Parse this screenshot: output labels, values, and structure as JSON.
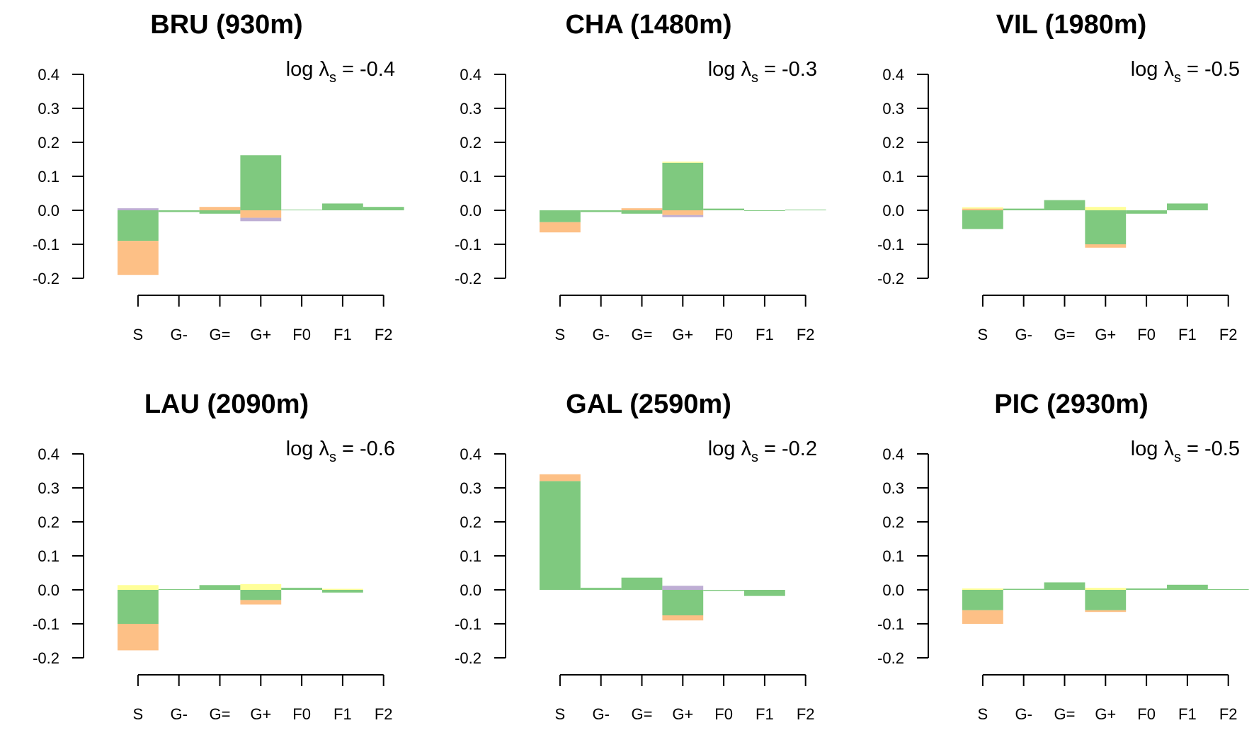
{
  "colors": {
    "green": "#7fc97f",
    "orange": "#fdc086",
    "purple": "#beaed4",
    "yellow": "#ffff99"
  },
  "chart_data": [
    {
      "type": "bar",
      "title": "BRU (930m)",
      "annotation": {
        "prefix": "log ",
        "symbol": "λ",
        "subscript": "s",
        "equals": " = ",
        "value": "-0.4"
      },
      "categories": [
        "S",
        "G-",
        "G=",
        "G+",
        "F0",
        "F1",
        "F2"
      ],
      "ylim": [
        -0.2,
        0.4
      ],
      "yticks": [
        "0.4",
        "0.3",
        "0.2",
        "0.1",
        "0.0",
        "-0.1",
        "-0.2"
      ],
      "grid": false,
      "series": [
        {
          "color": "green",
          "values": [
            -0.09,
            -0.005,
            -0.01,
            0.162,
            0.002,
            0.02,
            0.01
          ]
        },
        {
          "color": "orange",
          "values": [
            -0.1,
            0,
            0.01,
            -0.022,
            0,
            0,
            0
          ]
        },
        {
          "color": "purple",
          "values": [
            0.006,
            0,
            0,
            -0.01,
            0,
            0,
            0
          ]
        }
      ]
    },
    {
      "type": "bar",
      "title": "CHA (1480m)",
      "annotation": {
        "prefix": "log ",
        "symbol": "λ",
        "subscript": "s",
        "equals": " = ",
        "value": "-0.3"
      },
      "categories": [
        "S",
        "G-",
        "G=",
        "G+",
        "F0",
        "F1",
        "F2"
      ],
      "ylim": [
        -0.2,
        0.4
      ],
      "yticks": [
        "0.4",
        "0.3",
        "0.2",
        "0.1",
        "0.0",
        "-0.1",
        "-0.2"
      ],
      "grid": false,
      "series": [
        {
          "color": "green",
          "values": [
            -0.035,
            -0.005,
            -0.01,
            0.14,
            0.005,
            -0.002,
            0.002
          ]
        },
        {
          "color": "orange",
          "values": [
            -0.03,
            0,
            0.006,
            -0.014,
            0,
            0,
            0
          ]
        },
        {
          "color": "purple",
          "values": [
            0,
            0,
            0,
            -0.006,
            0,
            0,
            0
          ]
        },
        {
          "color": "yellow",
          "values": [
            0,
            0,
            0,
            0.003,
            0,
            0,
            0
          ]
        }
      ]
    },
    {
      "type": "bar",
      "title": "VIL (1980m)",
      "annotation": {
        "prefix": "log ",
        "symbol": "λ",
        "subscript": "s",
        "equals": " = ",
        "value": "-0.5"
      },
      "categories": [
        "S",
        "G-",
        "G=",
        "G+",
        "F0",
        "F1",
        "F2"
      ],
      "ylim": [
        -0.2,
        0.4
      ],
      "yticks": [
        "0.4",
        "0.3",
        "0.2",
        "0.1",
        "0.0",
        "-0.1",
        "-0.2"
      ],
      "grid": false,
      "series": [
        {
          "color": "green",
          "values": [
            -0.055,
            0.005,
            0.03,
            -0.1,
            -0.01,
            0.02,
            0
          ]
        },
        {
          "color": "orange",
          "values": [
            0.005,
            0,
            0,
            -0.01,
            0,
            0,
            0
          ]
        },
        {
          "color": "yellow",
          "values": [
            0.004,
            0,
            0,
            0.01,
            0,
            0,
            0
          ]
        }
      ]
    },
    {
      "type": "bar",
      "title": "LAU (2090m)",
      "annotation": {
        "prefix": "log ",
        "symbol": "λ",
        "subscript": "s",
        "equals": " = ",
        "value": "-0.6"
      },
      "categories": [
        "S",
        "G-",
        "G=",
        "G+",
        "F0",
        "F1",
        "F2"
      ],
      "ylim": [
        -0.2,
        0.4
      ],
      "yticks": [
        "0.4",
        "0.3",
        "0.2",
        "0.1",
        "0.0",
        "-0.1",
        "-0.2"
      ],
      "grid": false,
      "series": [
        {
          "color": "green",
          "values": [
            -0.1,
            0.002,
            0.014,
            -0.03,
            0.006,
            -0.008,
            0
          ]
        },
        {
          "color": "orange",
          "values": [
            -0.078,
            0,
            0,
            -0.013,
            0,
            0,
            0
          ]
        },
        {
          "color": "yellow",
          "values": [
            0.014,
            0,
            0,
            0.017,
            0,
            0.003,
            0
          ]
        }
      ]
    },
    {
      "type": "bar",
      "title": "GAL (2590m)",
      "annotation": {
        "prefix": "log ",
        "symbol": "λ",
        "subscript": "s",
        "equals": " = ",
        "value": "-0.2"
      },
      "categories": [
        "S",
        "G-",
        "G=",
        "G+",
        "F0",
        "F1",
        "F2"
      ],
      "ylim": [
        -0.2,
        0.4
      ],
      "yticks": [
        "0.4",
        "0.3",
        "0.2",
        "0.1",
        "0.0",
        "-0.1",
        "-0.2"
      ],
      "grid": false,
      "series": [
        {
          "color": "green",
          "values": [
            0.32,
            0.006,
            0.036,
            -0.075,
            -0.003,
            -0.018,
            0
          ]
        },
        {
          "color": "orange",
          "values": [
            0.02,
            0,
            0,
            -0.015,
            0,
            0,
            0
          ]
        },
        {
          "color": "purple",
          "values": [
            0,
            0,
            0,
            0.012,
            0,
            0,
            0
          ]
        }
      ]
    },
    {
      "type": "bar",
      "title": "PIC (2930m)",
      "annotation": {
        "prefix": "log ",
        "symbol": "λ",
        "subscript": "s",
        "equals": " = ",
        "value": "-0.5"
      },
      "categories": [
        "S",
        "G-",
        "G=",
        "G+",
        "F0",
        "F1",
        "F2"
      ],
      "ylim": [
        -0.2,
        0.4
      ],
      "yticks": [
        "0.4",
        "0.3",
        "0.2",
        "0.1",
        "0.0",
        "-0.1",
        "-0.2"
      ],
      "grid": false,
      "series": [
        {
          "color": "green",
          "values": [
            -0.06,
            0.003,
            0.022,
            -0.06,
            0.004,
            0.015,
            0.002
          ]
        },
        {
          "color": "orange",
          "values": [
            -0.04,
            0,
            0,
            -0.005,
            0,
            0,
            0
          ]
        },
        {
          "color": "yellow",
          "values": [
            0.004,
            0,
            0,
            0.006,
            0,
            0,
            0
          ]
        }
      ]
    }
  ]
}
